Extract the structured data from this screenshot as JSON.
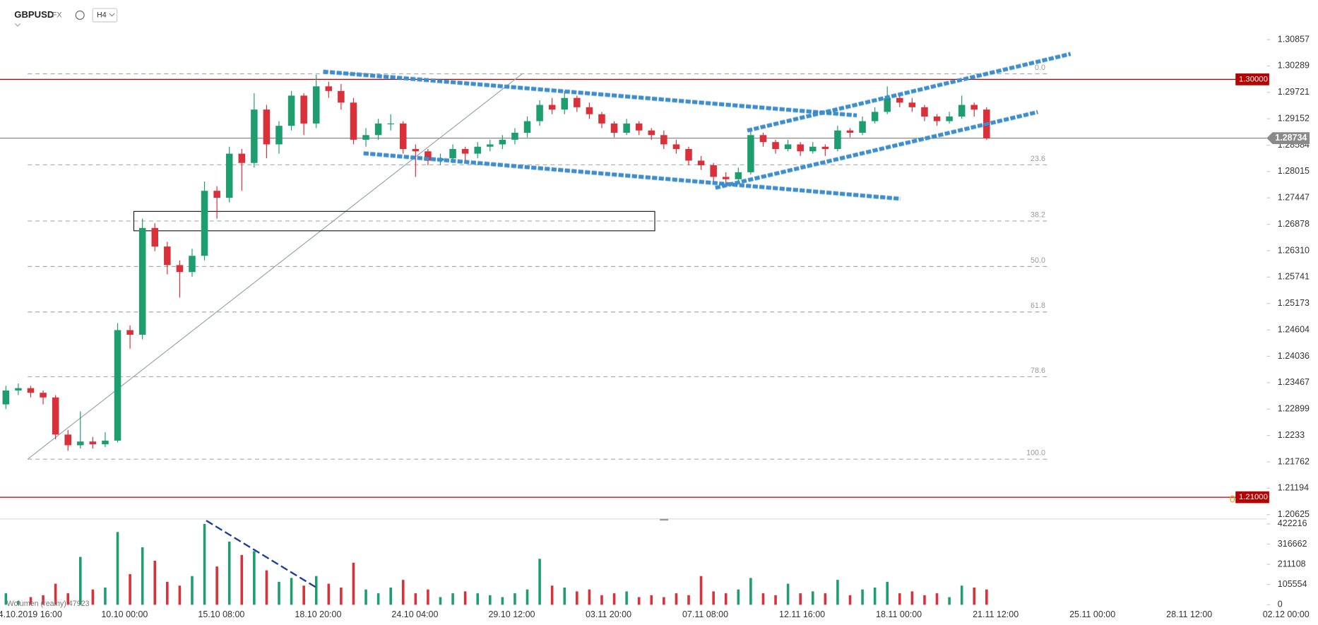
{
  "header": {
    "symbol": "GBPUSD",
    "market": "FX",
    "interval": "H4"
  },
  "chart_data": {
    "type": "candlestick",
    "up_color": "#1e9e6f",
    "down_color": "#d9303a",
    "ylim": [
      1.20625,
      1.30857
    ],
    "yticks": [
      1.30857,
      1.30289,
      1.29721,
      1.29152,
      1.28584,
      1.28015,
      1.27447,
      1.26878,
      {
        "value": 1.2631,
        "label": "1.26310"
      },
      1.25741,
      1.25173,
      1.24604,
      1.24036,
      1.23467,
      1.22899,
      1.2233,
      1.21762,
      1.21194,
      1.20625
    ],
    "x_labels": [
      "04.10.2019 16:00",
      "10.10 00:00",
      "15.10 08:00",
      "18.10 20:00",
      "24.10 04:00",
      "29.10 12:00",
      "03.11 20:00",
      "07.11 08:00",
      "12.11 16:00",
      "18.11 00:00",
      "21.11 12:00",
      "25.11 00:00",
      "28.11 12:00",
      "02.12 00:00"
    ],
    "candles": [
      [
        1.23,
        1.234,
        1.229,
        1.233
      ],
      [
        1.233,
        1.2345,
        1.232,
        1.2335
      ],
      [
        1.2335,
        1.234,
        1.2315,
        1.2325
      ],
      [
        1.2325,
        1.233,
        1.23,
        1.2315
      ],
      [
        1.2315,
        1.232,
        1.2225,
        1.2235
      ],
      [
        1.2235,
        1.2245,
        1.22,
        1.2212
      ],
      [
        1.2212,
        1.2285,
        1.2205,
        1.222
      ],
      [
        1.222,
        1.223,
        1.2205,
        1.2214
      ],
      [
        1.2214,
        1.224,
        1.2208,
        1.2222
      ],
      [
        1.2222,
        1.2475,
        1.2218,
        1.246
      ],
      [
        1.246,
        1.247,
        1.242,
        1.245
      ],
      [
        1.245,
        1.27,
        1.244,
        1.268
      ],
      [
        1.268,
        1.269,
        1.263,
        1.264
      ],
      [
        1.264,
        1.265,
        1.258,
        1.26
      ],
      [
        1.26,
        1.261,
        1.253,
        1.2585
      ],
      [
        1.2585,
        1.2635,
        1.2575,
        1.262
      ],
      [
        1.262,
        1.278,
        1.261,
        1.276
      ],
      [
        1.276,
        1.277,
        1.27,
        1.2745
      ],
      [
        1.2745,
        1.2855,
        1.2735,
        1.284
      ],
      [
        1.284,
        1.285,
        1.276,
        1.282
      ],
      [
        1.282,
        1.297,
        1.281,
        1.2935
      ],
      [
        1.2935,
        1.2945,
        1.283,
        1.286
      ],
      [
        1.286,
        1.291,
        1.284,
        1.29
      ],
      [
        1.29,
        1.2975,
        1.289,
        1.2965
      ],
      [
        1.2965,
        1.297,
        1.288,
        1.2905
      ],
      [
        1.2905,
        1.301,
        1.2895,
        1.2985
      ],
      [
        1.2985,
        1.2995,
        1.296,
        1.2975
      ],
      [
        1.2975,
        1.299,
        1.2935,
        1.295
      ],
      [
        1.295,
        1.296,
        1.286,
        1.287
      ],
      [
        1.287,
        1.2895,
        1.2855,
        1.288
      ],
      [
        1.288,
        1.2915,
        1.287,
        1.2905
      ],
      [
        1.2905,
        1.2925,
        1.289,
        1.2905
      ],
      [
        1.2905,
        1.291,
        1.284,
        1.285
      ],
      [
        1.285,
        1.286,
        1.279,
        1.2845
      ],
      [
        1.2845,
        1.285,
        1.2815,
        1.2825
      ],
      [
        1.2825,
        1.284,
        1.2815,
        1.283
      ],
      [
        1.283,
        1.286,
        1.282,
        1.285
      ],
      [
        1.285,
        1.2855,
        1.2825,
        1.284
      ],
      [
        1.284,
        1.2865,
        1.283,
        1.2855
      ],
      [
        1.2855,
        1.287,
        1.2845,
        1.286
      ],
      [
        1.286,
        1.288,
        1.285,
        1.287
      ],
      [
        1.287,
        1.2895,
        1.286,
        1.2885
      ],
      [
        1.2885,
        1.292,
        1.2875,
        1.291
      ],
      [
        1.291,
        1.2955,
        1.29,
        1.2945
      ],
      [
        1.2945,
        1.296,
        1.2925,
        1.2935
      ],
      [
        1.2935,
        1.2975,
        1.2925,
        1.296
      ],
      [
        1.296,
        1.2965,
        1.293,
        1.294
      ],
      [
        1.294,
        1.295,
        1.2915,
        1.2925
      ],
      [
        1.2925,
        1.293,
        1.2895,
        1.2905
      ],
      [
        1.2905,
        1.291,
        1.2875,
        1.2885
      ],
      [
        1.2885,
        1.2915,
        1.288,
        1.2905
      ],
      [
        1.2905,
        1.291,
        1.288,
        1.289
      ],
      [
        1.289,
        1.2895,
        1.287,
        1.288
      ],
      [
        1.288,
        1.289,
        1.285,
        1.286
      ],
      [
        1.286,
        1.287,
        1.284,
        1.285
      ],
      [
        1.285,
        1.2855,
        1.2815,
        1.2825
      ],
      [
        1.2825,
        1.2835,
        1.2805,
        1.2815
      ],
      [
        1.2815,
        1.282,
        1.278,
        1.279
      ],
      [
        1.279,
        1.28,
        1.2775,
        1.2785
      ],
      [
        1.2785,
        1.281,
        1.278,
        1.28
      ],
      [
        1.28,
        1.2895,
        1.2795,
        1.288
      ],
      [
        1.288,
        1.2885,
        1.2855,
        1.2865
      ],
      [
        1.2865,
        1.287,
        1.284,
        1.285
      ],
      [
        1.285,
        1.287,
        1.2845,
        1.286
      ],
      [
        1.286,
        1.2865,
        1.2835,
        1.2845
      ],
      [
        1.2845,
        1.2865,
        1.284,
        1.2855
      ],
      [
        1.2855,
        1.286,
        1.2835,
        1.285
      ],
      [
        1.285,
        1.29,
        1.2845,
        1.289
      ],
      [
        1.289,
        1.2895,
        1.2875,
        1.2885
      ],
      [
        1.2885,
        1.292,
        1.288,
        1.291
      ],
      [
        1.291,
        1.294,
        1.2905,
        1.293
      ],
      [
        1.293,
        1.2985,
        1.2925,
        1.296
      ],
      [
        1.296,
        1.2965,
        1.294,
        1.295
      ],
      [
        1.295,
        1.296,
        1.293,
        1.294
      ],
      [
        1.294,
        1.2945,
        1.291,
        1.292
      ],
      [
        1.292,
        1.2925,
        1.29,
        1.291
      ],
      [
        1.291,
        1.293,
        1.2905,
        1.292
      ],
      [
        1.292,
        1.2965,
        1.2915,
        1.2945
      ],
      [
        1.2945,
        1.295,
        1.292,
        1.2935
      ],
      [
        1.2935,
        1.294,
        1.287,
        1.2873
      ]
    ],
    "volume": {
      "label": "Wolumen (realny) 47923",
      "ylim": [
        0,
        422216
      ],
      "yticks": [
        422216,
        316662,
        211108,
        105554,
        0
      ],
      "values": [
        60000,
        20000,
        40000,
        50000,
        110000,
        60000,
        250000,
        80000,
        90000,
        380000,
        160000,
        300000,
        230000,
        120000,
        100000,
        150000,
        422216,
        200000,
        330000,
        260000,
        280000,
        180000,
        120000,
        140000,
        100000,
        150000,
        110000,
        90000,
        220000,
        80000,
        60000,
        90000,
        130000,
        60000,
        80000,
        40000,
        60000,
        70000,
        60000,
        50000,
        40000,
        60000,
        80000,
        240000,
        100000,
        90000,
        70000,
        80000,
        50000,
        60000,
        70000,
        40000,
        50000,
        40000,
        60000,
        50000,
        150000,
        70000,
        60000,
        80000,
        140000,
        60000,
        50000,
        110000,
        60000,
        70000,
        60000,
        130000,
        50000,
        80000,
        90000,
        120000,
        60000,
        70000,
        50000,
        60000,
        40000,
        100000,
        90000,
        80000
      ]
    },
    "price_lines": [
      {
        "value": 1.3,
        "label": "1.30000",
        "color": "#b50000"
      },
      {
        "value": 1.28734,
        "label": "1.28734",
        "color": "#8a8a8a"
      },
      {
        "value": 1.21,
        "label": "1.21000",
        "color": "#b50000"
      }
    ],
    "alert_label": "0",
    "fibonacci": {
      "high": 1.3012,
      "low": 1.2182,
      "levels": [
        {
          "value": 0,
          "label": "0.0"
        },
        {
          "value": 23.6,
          "label": "23.6"
        },
        {
          "value": 38.2,
          "label": "38.2"
        },
        {
          "value": 50,
          "label": "50.0"
        },
        {
          "value": 61.8,
          "label": "61.8"
        },
        {
          "value": 78.6,
          "label": "78.6"
        },
        {
          "value": 100,
          "label": "100.0"
        }
      ]
    }
  }
}
